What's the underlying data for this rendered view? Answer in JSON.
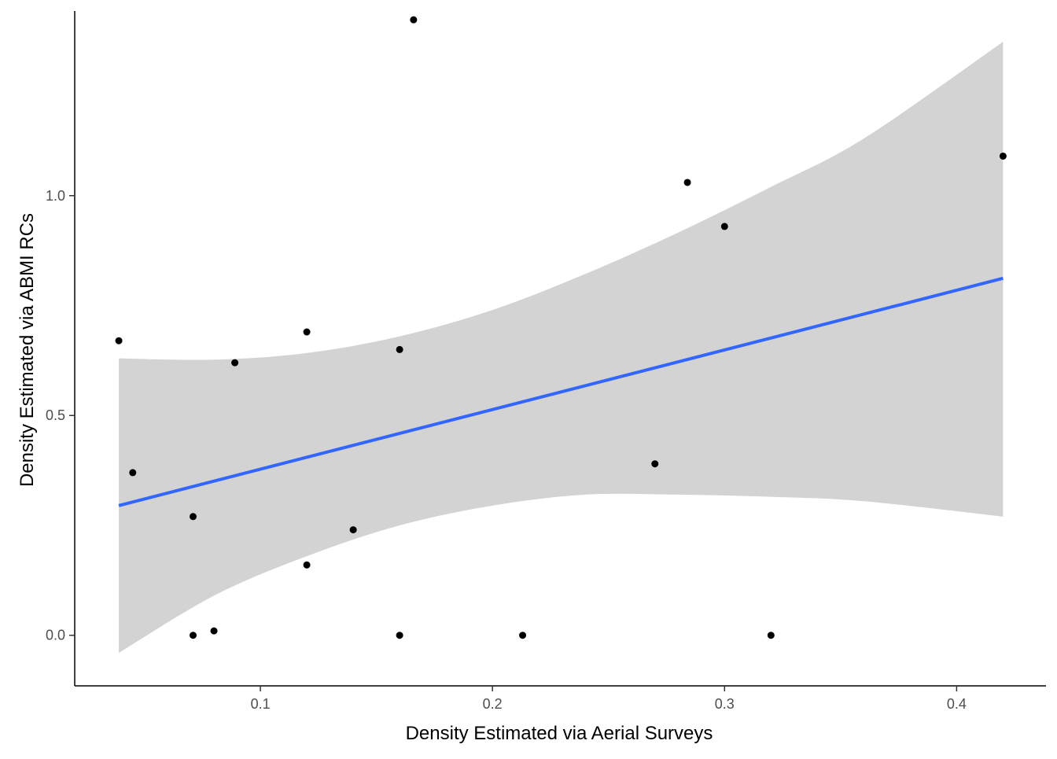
{
  "chart_data": {
    "type": "scatter",
    "title": "",
    "xlabel": "Density Estimated via Aerial Surveys",
    "ylabel": "Density Estimated via ABMI RCs",
    "xlim": [
      0.02,
      0.4385
    ],
    "ylim": [
      -0.115,
      1.42
    ],
    "x_ticks": [
      {
        "value": 0.1,
        "label": "0.1"
      },
      {
        "value": 0.2,
        "label": "0.2"
      },
      {
        "value": 0.3,
        "label": "0.3"
      },
      {
        "value": 0.4,
        "label": "0.4"
      }
    ],
    "y_ticks": [
      {
        "value": 0.0,
        "label": "0.0"
      },
      {
        "value": 0.5,
        "label": "0.5"
      },
      {
        "value": 1.0,
        "label": "1.0"
      }
    ],
    "grid": false,
    "points": [
      {
        "x": 0.039,
        "y": 0.67
      },
      {
        "x": 0.045,
        "y": 0.37
      },
      {
        "x": 0.071,
        "y": 0.27
      },
      {
        "x": 0.071,
        "y": 0.0
      },
      {
        "x": 0.08,
        "y": 0.01
      },
      {
        "x": 0.089,
        "y": 0.62
      },
      {
        "x": 0.12,
        "y": 0.69
      },
      {
        "x": 0.12,
        "y": 0.16
      },
      {
        "x": 0.14,
        "y": 0.24
      },
      {
        "x": 0.16,
        "y": 0.65
      },
      {
        "x": 0.16,
        "y": 0.0
      },
      {
        "x": 0.166,
        "y": 1.4
      },
      {
        "x": 0.213,
        "y": 0.0
      },
      {
        "x": 0.27,
        "y": 0.39
      },
      {
        "x": 0.284,
        "y": 1.03
      },
      {
        "x": 0.3,
        "y": 0.93
      },
      {
        "x": 0.32,
        "y": 0.0
      },
      {
        "x": 0.42,
        "y": 1.09
      }
    ],
    "fit_line": {
      "x": [
        0.039,
        0.42
      ],
      "y": [
        0.295,
        0.812
      ],
      "color": "#3366FF"
    },
    "confidence_band": {
      "x": [
        0.039,
        0.08,
        0.12,
        0.16,
        0.2,
        0.24,
        0.28,
        0.32,
        0.36,
        0.42
      ],
      "upper": [
        0.63,
        0.627,
        0.642,
        0.68,
        0.74,
        0.822,
        0.916,
        1.02,
        1.13,
        1.35
      ],
      "lower": [
        -0.04,
        0.09,
        0.18,
        0.25,
        0.295,
        0.32,
        0.32,
        0.315,
        0.305,
        0.27
      ],
      "color": "#D3D3D3"
    },
    "point_color": "#000000"
  }
}
